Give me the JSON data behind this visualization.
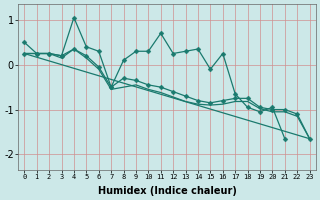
{
  "title": "",
  "xlabel": "Humidex (Indice chaleur)",
  "ylabel": "",
  "bg_color": "#cce8e8",
  "grid_color": "#d09090",
  "line_color": "#1a7a6e",
  "xlim": [
    -0.5,
    23.5
  ],
  "ylim": [
    -2.35,
    1.35
  ],
  "xticks": [
    0,
    1,
    2,
    3,
    4,
    5,
    6,
    7,
    8,
    9,
    10,
    11,
    12,
    13,
    14,
    15,
    16,
    17,
    18,
    19,
    20,
    21,
    22,
    23
  ],
  "yticks": [
    -2,
    -1,
    0,
    1
  ],
  "line1_x": [
    0,
    1,
    2,
    3,
    4,
    5,
    6,
    7,
    8,
    9,
    10,
    11,
    12,
    13,
    14,
    15,
    16,
    17,
    18,
    19,
    20,
    21,
    22
  ],
  "line1_y": [
    0.5,
    0.25,
    0.25,
    0.2,
    1.05,
    0.4,
    0.3,
    -0.5,
    0.1,
    0.3,
    0.3,
    0.7,
    0.25,
    0.3,
    0.35,
    -0.1,
    0.25,
    -0.65,
    -0.95,
    -1.05,
    -0.95,
    -1.65,
    null
  ],
  "line2_x": [
    0,
    1,
    2,
    3,
    4,
    5,
    6,
    7,
    8,
    9,
    10,
    11,
    12,
    13,
    14,
    15,
    16,
    17,
    18,
    19,
    20,
    21,
    22,
    23
  ],
  "line2_y": [
    0.25,
    0.25,
    0.25,
    0.2,
    0.35,
    0.2,
    -0.05,
    -0.5,
    -0.3,
    -0.35,
    -0.45,
    -0.5,
    -0.6,
    -0.7,
    -0.8,
    -0.85,
    -0.8,
    -0.75,
    -0.75,
    -0.95,
    -1.0,
    -1.0,
    -1.1,
    -1.65
  ],
  "line3_x": [
    0,
    1,
    2,
    3,
    4,
    5,
    6,
    7,
    8,
    9,
    10,
    11,
    12,
    13,
    14,
    15,
    16,
    17,
    18,
    19,
    20,
    21,
    22,
    23
  ],
  "line3_y": [
    0.25,
    0.25,
    0.25,
    0.15,
    0.35,
    0.15,
    -0.1,
    -0.55,
    -0.5,
    -0.45,
    -0.55,
    -0.62,
    -0.72,
    -0.82,
    -0.88,
    -0.9,
    -0.88,
    -0.82,
    -0.82,
    -0.98,
    -1.05,
    -1.05,
    -1.15,
    -1.65
  ],
  "line4_x": [
    0,
    23
  ],
  "line4_y": [
    0.25,
    -1.65
  ],
  "marker": "D",
  "marker_size": 2.5,
  "linewidth": 0.9
}
